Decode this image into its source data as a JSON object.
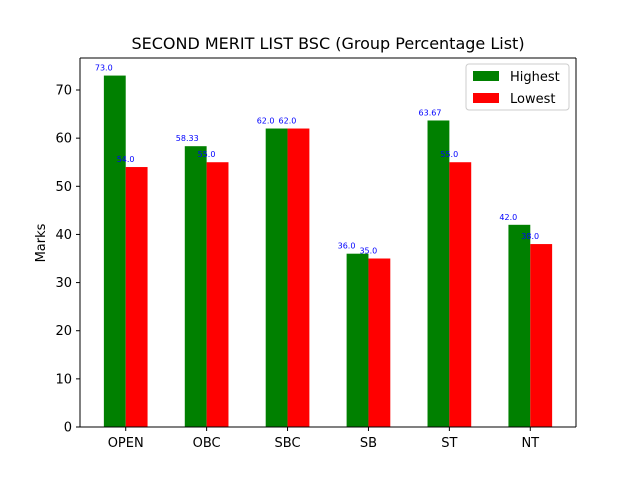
{
  "chart_data": {
    "type": "bar",
    "title": "SECOND MERIT LIST BSC (Group Percentage List)",
    "xlabel": "",
    "ylabel": "Marks",
    "categories": [
      "OPEN",
      "OBC",
      "SBC",
      "SB",
      "ST",
      "NT"
    ],
    "series": [
      {
        "name": "Highest",
        "color": "#008000",
        "values": [
          73.0,
          58.33,
          62.0,
          36.0,
          63.67,
          42.0
        ],
        "labels": [
          "73.0",
          "58.33",
          "62.0",
          "36.0",
          "63.67",
          "42.0"
        ]
      },
      {
        "name": "Lowest",
        "color": "#ff0000",
        "values": [
          54.0,
          55.0,
          62.0,
          35.0,
          55.0,
          38.0
        ],
        "labels": [
          "54.0",
          "55.0",
          "62.0",
          "35.0",
          "55.0",
          "38.0"
        ]
      }
    ],
    "ylim": [
      0,
      76.65
    ],
    "yticks": [
      0,
      10,
      20,
      30,
      40,
      50,
      60,
      70
    ],
    "label_color": "#0000ff",
    "legend_position": "upper right",
    "grid": false
  }
}
